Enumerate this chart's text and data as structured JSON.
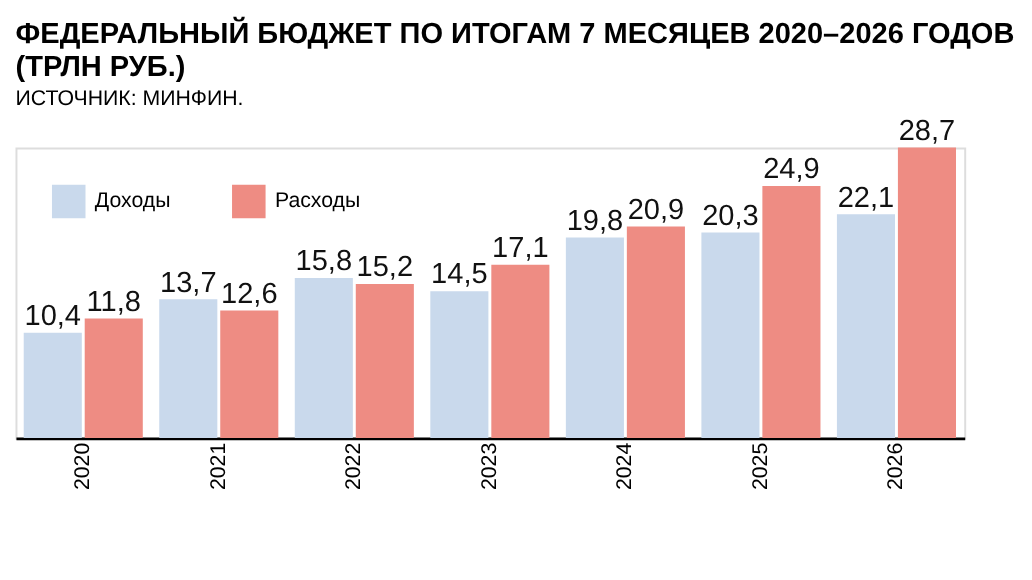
{
  "chart_data": {
    "type": "bar",
    "title": "ФЕДЕРАЛЬНЫЙ БЮДЖЕТ ПО ИТОГАМ 7 МЕСЯЦЕВ 2020–2026 ГОДОВ (ТРЛН РУБ.)",
    "subtitle": "ИСТОЧНИК: МИНФИН.",
    "categories": [
      "2020",
      "2021",
      "2022",
      "2023",
      "2024",
      "2025",
      "2026"
    ],
    "series": [
      {
        "name": "Доходы",
        "color": "#c9d9ec",
        "values": [
          10.4,
          13.7,
          15.8,
          14.5,
          19.8,
          20.3,
          22.1
        ],
        "value_labels": [
          "10,4",
          "13,7",
          "15,8",
          "14,5",
          "19,8",
          "20,3",
          "22,1"
        ]
      },
      {
        "name": "Расходы",
        "color": "#ee8c83",
        "values": [
          11.8,
          12.6,
          15.2,
          17.1,
          20.9,
          24.9,
          28.7
        ],
        "value_labels": [
          "11,8",
          "12,6",
          "15,2",
          "17,1",
          "20,9",
          "24,9",
          "28,7"
        ]
      }
    ],
    "legend": "top left",
    "tick_labels": "x",
    "grid": false
  }
}
